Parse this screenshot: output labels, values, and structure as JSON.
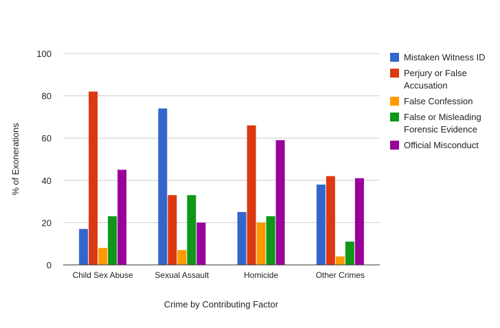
{
  "chart_data": {
    "type": "bar",
    "title": "",
    "xlabel": "Crime by Contributing Factor",
    "ylabel": "% of Exonerations",
    "ylim": [
      0,
      100
    ],
    "yticks": [
      0,
      20,
      40,
      60,
      80,
      100
    ],
    "categories": [
      "Child Sex Abuse",
      "Sexual Assault",
      "Homicide",
      "Other Crimes"
    ],
    "series": [
      {
        "name": "Mistaken Witness ID",
        "label_lines": [
          "Mistaken Witness ID"
        ],
        "color": "#3366cc",
        "values": [
          17,
          74,
          25,
          38
        ]
      },
      {
        "name": "Perjury or False Accusation",
        "label_lines": [
          "Perjury or False",
          "Accusation"
        ],
        "color": "#dc3912",
        "values": [
          82,
          33,
          66,
          42
        ]
      },
      {
        "name": "False Confession",
        "label_lines": [
          "False Confession"
        ],
        "color": "#ff9900",
        "values": [
          8,
          7,
          20,
          4
        ]
      },
      {
        "name": "False or Misleading Forensic Evidence",
        "label_lines": [
          "False or Misleading",
          "Forensic Evidence"
        ],
        "color": "#109618",
        "values": [
          23,
          33,
          23,
          11
        ]
      },
      {
        "name": "Official Misconduct",
        "label_lines": [
          "Official Misconduct"
        ],
        "color": "#990099",
        "values": [
          45,
          20,
          59,
          41
        ]
      }
    ],
    "grid": true,
    "legend_position": "right"
  }
}
